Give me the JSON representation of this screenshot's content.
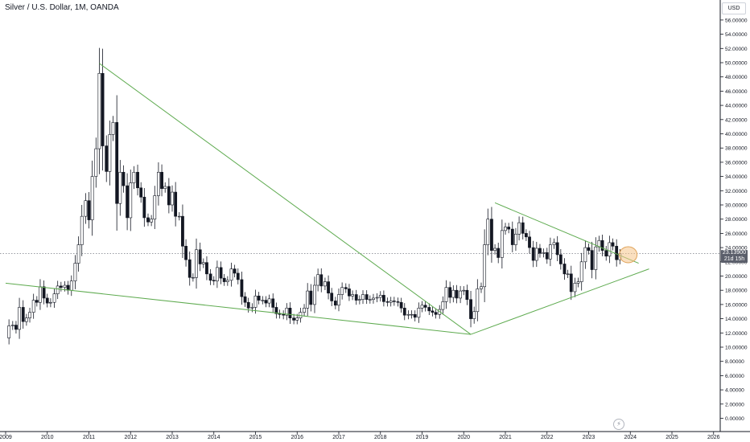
{
  "header": {
    "title": "Silver / U.S. Dollar, 1M, OANDA"
  },
  "price_scale": {
    "currency_label": "USD"
  },
  "last_price": {
    "value": "23.13900",
    "countdown": "21d 15h"
  },
  "icons": {
    "lightning": "lightning-icon"
  },
  "colors": {
    "up": "#ffffff",
    "down": "#131722",
    "wick": "#131722",
    "trendline": "#5fab50",
    "highlight": "#f5c48a",
    "axis_text": "#131722"
  },
  "chart_data": {
    "type": "candlestick",
    "title": "Silver / U.S. Dollar, 1M, OANDA",
    "ylim": [
      -0.5,
      57
    ],
    "xlim": [
      2009.0,
      2026.2
    ],
    "x_ticks": [
      "2009",
      "2010",
      "2011",
      "2012",
      "2013",
      "2014",
      "2015",
      "2016",
      "2017",
      "2018",
      "2019",
      "2020",
      "2021",
      "2022",
      "2023",
      "2024",
      "2025",
      "2026"
    ],
    "y_ticks": [
      "0.00000",
      "2.00000",
      "4.00000",
      "6.00000",
      "8.00000",
      "10.00000",
      "12.00000",
      "14.00000",
      "16.00000",
      "18.00000",
      "20.00000",
      "22.00000",
      "24.00000",
      "26.00000",
      "28.00000",
      "30.00000",
      "32.00000",
      "34.00000",
      "36.00000",
      "38.00000",
      "40.00000",
      "42.00000",
      "44.00000",
      "46.00000",
      "48.00000",
      "50.00000",
      "52.00000",
      "54.00000",
      "56.00000"
    ],
    "monthly_close": [
      [
        2009.0,
        11.3
      ],
      [
        2009.08,
        13.0
      ],
      [
        2009.17,
        13.1
      ],
      [
        2009.25,
        12.5
      ],
      [
        2009.33,
        15.6
      ],
      [
        2009.42,
        13.6
      ],
      [
        2009.5,
        14.1
      ],
      [
        2009.58,
        14.9
      ],
      [
        2009.67,
        16.6
      ],
      [
        2009.75,
        16.3
      ],
      [
        2009.83,
        18.5
      ],
      [
        2009.92,
        16.9
      ],
      [
        2010.0,
        16.2
      ],
      [
        2010.08,
        16.3
      ],
      [
        2010.17,
        17.5
      ],
      [
        2010.25,
        18.6
      ],
      [
        2010.33,
        18.4
      ],
      [
        2010.42,
        18.7
      ],
      [
        2010.5,
        18.0
      ],
      [
        2010.58,
        19.3
      ],
      [
        2010.67,
        21.8
      ],
      [
        2010.75,
        24.4
      ],
      [
        2010.83,
        28.4
      ],
      [
        2010.92,
        30.6
      ],
      [
        2011.0,
        27.9
      ],
      [
        2011.08,
        34.0
      ],
      [
        2011.17,
        37.9
      ],
      [
        2011.25,
        48.5
      ],
      [
        2011.33,
        38.3
      ],
      [
        2011.42,
        34.7
      ],
      [
        2011.5,
        39.9
      ],
      [
        2011.58,
        41.6
      ],
      [
        2011.67,
        30.2
      ],
      [
        2011.75,
        34.6
      ],
      [
        2011.83,
        32.7
      ],
      [
        2011.92,
        28.2
      ],
      [
        2012.0,
        33.1
      ],
      [
        2012.08,
        34.6
      ],
      [
        2012.17,
        32.4
      ],
      [
        2012.25,
        31.1
      ],
      [
        2012.33,
        28.2
      ],
      [
        2012.42,
        27.6
      ],
      [
        2012.5,
        28.0
      ],
      [
        2012.58,
        31.3
      ],
      [
        2012.67,
        34.6
      ],
      [
        2012.75,
        32.3
      ],
      [
        2012.83,
        32.6
      ],
      [
        2012.92,
        30.0
      ],
      [
        2013.0,
        31.8
      ],
      [
        2013.08,
        28.4
      ],
      [
        2013.17,
        28.4
      ],
      [
        2013.25,
        24.2
      ],
      [
        2013.33,
        22.3
      ],
      [
        2013.42,
        19.8
      ],
      [
        2013.5,
        19.8
      ],
      [
        2013.58,
        23.7
      ],
      [
        2013.67,
        21.7
      ],
      [
        2013.75,
        21.9
      ],
      [
        2013.83,
        20.3
      ],
      [
        2013.92,
        19.4
      ],
      [
        2014.0,
        19.3
      ],
      [
        2014.08,
        21.2
      ],
      [
        2014.17,
        19.7
      ],
      [
        2014.25,
        19.2
      ],
      [
        2014.33,
        19.4
      ],
      [
        2014.42,
        21.0
      ],
      [
        2014.5,
        20.4
      ],
      [
        2014.58,
        19.5
      ],
      [
        2014.67,
        17.1
      ],
      [
        2014.75,
        16.3
      ],
      [
        2014.83,
        15.5
      ],
      [
        2014.92,
        15.6
      ],
      [
        2015.0,
        17.2
      ],
      [
        2015.08,
        16.6
      ],
      [
        2015.17,
        16.6
      ],
      [
        2015.25,
        16.2
      ],
      [
        2015.33,
        16.8
      ],
      [
        2015.42,
        15.6
      ],
      [
        2015.5,
        14.7
      ],
      [
        2015.58,
        14.6
      ],
      [
        2015.67,
        14.5
      ],
      [
        2015.75,
        15.5
      ],
      [
        2015.83,
        14.1
      ],
      [
        2015.92,
        13.8
      ],
      [
        2016.0,
        14.1
      ],
      [
        2016.08,
        14.9
      ],
      [
        2016.17,
        15.5
      ],
      [
        2016.25,
        17.9
      ],
      [
        2016.33,
        16.0
      ],
      [
        2016.42,
        18.7
      ],
      [
        2016.5,
        20.2
      ],
      [
        2016.58,
        18.6
      ],
      [
        2016.67,
        19.2
      ],
      [
        2016.75,
        17.6
      ],
      [
        2016.83,
        16.5
      ],
      [
        2016.92,
        15.9
      ],
      [
        2017.0,
        17.4
      ],
      [
        2017.08,
        18.4
      ],
      [
        2017.17,
        18.2
      ],
      [
        2017.25,
        17.2
      ],
      [
        2017.33,
        17.4
      ],
      [
        2017.42,
        16.6
      ],
      [
        2017.5,
        16.7
      ],
      [
        2017.58,
        17.4
      ],
      [
        2017.67,
        16.7
      ],
      [
        2017.75,
        16.7
      ],
      [
        2017.83,
        16.9
      ],
      [
        2017.92,
        17.0
      ],
      [
        2018.0,
        17.3
      ],
      [
        2018.08,
        16.4
      ],
      [
        2018.17,
        16.3
      ],
      [
        2018.25,
        16.5
      ],
      [
        2018.33,
        16.4
      ],
      [
        2018.42,
        16.3
      ],
      [
        2018.5,
        15.5
      ],
      [
        2018.58,
        14.5
      ],
      [
        2018.67,
        14.6
      ],
      [
        2018.75,
        14.6
      ],
      [
        2018.83,
        14.2
      ],
      [
        2018.92,
        15.5
      ],
      [
        2019.0,
        15.9
      ],
      [
        2019.08,
        15.6
      ],
      [
        2019.17,
        15.1
      ],
      [
        2019.25,
        14.9
      ],
      [
        2019.33,
        14.6
      ],
      [
        2019.42,
        15.3
      ],
      [
        2019.5,
        16.4
      ],
      [
        2019.58,
        18.4
      ],
      [
        2019.67,
        17.0
      ],
      [
        2019.75,
        18.0
      ],
      [
        2019.83,
        16.9
      ],
      [
        2019.92,
        17.9
      ],
      [
        2020.0,
        18.0
      ],
      [
        2020.08,
        16.7
      ],
      [
        2020.17,
        14.0
      ],
      [
        2020.25,
        15.0
      ],
      [
        2020.33,
        18.2
      ],
      [
        2020.42,
        18.5
      ],
      [
        2020.5,
        24.4
      ],
      [
        2020.58,
        28.0
      ],
      [
        2020.67,
        23.6
      ],
      [
        2020.75,
        23.9
      ],
      [
        2020.83,
        22.6
      ],
      [
        2020.92,
        26.4
      ],
      [
        2021.0,
        26.9
      ],
      [
        2021.08,
        26.6
      ],
      [
        2021.17,
        24.4
      ],
      [
        2021.25,
        25.9
      ],
      [
        2021.33,
        27.5
      ],
      [
        2021.42,
        26.0
      ],
      [
        2021.5,
        25.5
      ],
      [
        2021.58,
        24.0
      ],
      [
        2021.67,
        22.2
      ],
      [
        2021.75,
        23.9
      ],
      [
        2021.83,
        23.2
      ],
      [
        2021.92,
        23.3
      ],
      [
        2022.0,
        22.4
      ],
      [
        2022.08,
        24.4
      ],
      [
        2022.17,
        24.7
      ],
      [
        2022.25,
        23.0
      ],
      [
        2022.33,
        21.7
      ],
      [
        2022.42,
        20.3
      ],
      [
        2022.5,
        20.3
      ],
      [
        2022.58,
        17.8
      ],
      [
        2022.67,
        19.0
      ],
      [
        2022.75,
        19.2
      ],
      [
        2022.83,
        22.0
      ],
      [
        2022.92,
        24.0
      ],
      [
        2023.0,
        23.6
      ],
      [
        2023.08,
        20.9
      ],
      [
        2023.17,
        24.1
      ],
      [
        2023.25,
        25.0
      ],
      [
        2023.33,
        23.6
      ],
      [
        2023.42,
        22.8
      ],
      [
        2023.5,
        24.7
      ],
      [
        2023.58,
        24.2
      ],
      [
        2023.67,
        22.3
      ],
      [
        2023.75,
        23.14
      ]
    ],
    "trendlines": [
      {
        "from": [
          2009.0,
          19.0
        ],
        "to": [
          2020.17,
          11.8
        ]
      },
      {
        "from": [
          2011.25,
          49.9
        ],
        "to": [
          2020.17,
          11.8
        ]
      },
      {
        "from": [
          2020.17,
          11.8
        ],
        "to": [
          2024.45,
          21.0
        ]
      },
      {
        "from": [
          2020.75,
          30.3
        ],
        "to": [
          2024.2,
          21.8
        ]
      }
    ],
    "last_price_line": 23.139,
    "highlight_ellipse": {
      "x": 2023.95,
      "y": 23.0
    }
  }
}
